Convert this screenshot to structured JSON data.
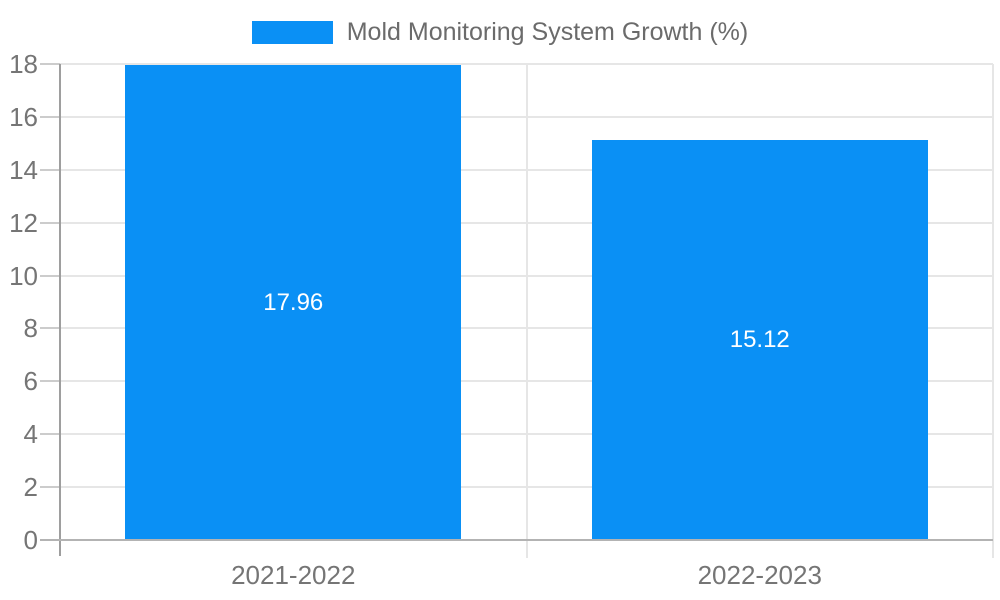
{
  "legend": {
    "label": "Mold Monitoring System Growth (%)"
  },
  "colors": {
    "bar": "#0a90f5",
    "grid": "#e6e6e6",
    "tick_stub": "#cccccc",
    "y_axis_line": "#9e9e9e",
    "baseline": "#b3b3b3",
    "tick_label_text": "#757575",
    "legend_text": "#6b6b6b",
    "data_label_text": "#ffffff",
    "background": "#ffffff"
  },
  "chart_data": {
    "type": "bar",
    "title": "Mold Monitoring System Growth (%)",
    "categories": [
      "2021-2022",
      "2022-2023"
    ],
    "values": [
      17.96,
      15.12
    ],
    "data_labels": [
      "17.96",
      "15.12"
    ],
    "xlabel": "",
    "ylabel": "",
    "ylim": [
      0,
      18
    ],
    "ytick_step": 2,
    "yticks": [
      0,
      2,
      4,
      6,
      8,
      10,
      12,
      14,
      16,
      18
    ],
    "grid": true,
    "legend_position": "top-center",
    "legend_entries": [
      "Mold Monitoring System Growth (%)"
    ]
  }
}
